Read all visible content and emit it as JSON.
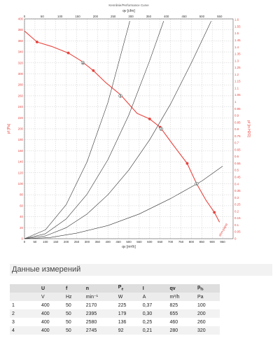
{
  "chart_data": {
    "type": "line",
    "title": "Kennlinie/Performance Curve",
    "top_axis_label": "qv [cfm]",
    "xlabel": "qv [m³/h]",
    "ylabel_left": "pf [Pa]",
    "ylabel_right": "pf [in H2O]",
    "xlim": [
      0,
      1000
    ],
    "ylim": [
      0,
      400
    ],
    "top_xlim": [
      0,
      588
    ],
    "right_ylim": [
      0,
      1.606
    ],
    "grid": true,
    "x_ticks": [
      "0",
      "50",
      "100",
      "150",
      "200",
      "250",
      "300",
      "350",
      "400",
      "450",
      "500",
      "550",
      "600",
      "650",
      "700",
      "750",
      "800",
      "850",
      "900",
      "950"
    ],
    "y_ticks": [
      "0",
      "20",
      "40",
      "60",
      "80",
      "100",
      "120",
      "140",
      "160",
      "180",
      "200",
      "220",
      "240",
      "260",
      "280",
      "300",
      "320",
      "340",
      "360",
      "380",
      "400"
    ],
    "top_ticks": [
      "0",
      "50",
      "100",
      "150",
      "200",
      "250",
      "300",
      "350",
      "400",
      "450",
      "500",
      "550"
    ],
    "right_ticks": [
      "0",
      "0.05",
      "0.1",
      "0.15",
      "0.2",
      "0.25",
      "0.3",
      "0.35",
      "0.4",
      "0.45",
      "0.5",
      "0.55",
      "0.6",
      "0.65",
      "0.7",
      "0.75",
      "0.8",
      "0.85",
      "0.9",
      "0.95",
      "1",
      "1.05",
      "1.1",
      "1.15",
      "1.2",
      "1.25",
      "1.3",
      "1.35",
      "1.4",
      "1.45",
      "1.5",
      "1.55",
      "1.6"
    ],
    "series": [
      {
        "color": "#e8443f",
        "x": [
          0,
          60,
          130,
          210,
          270,
          330,
          390,
          460,
          540,
          600,
          650,
          710,
          780,
          825,
          870,
          910,
          935
        ],
        "y": [
          378,
          358,
          350,
          338,
          324,
          306,
          284,
          262,
          228,
          218,
          203,
          172,
          137,
          100,
          70,
          48,
          30
        ]
      },
      {
        "color": "#333333",
        "x": [
          0,
          120,
          250,
          400,
          550,
          700,
          850,
          950
        ],
        "y": [
          0,
          2,
          10,
          24,
          45,
          73,
          105,
          132
        ]
      },
      {
        "color": "#333333",
        "x": [
          0,
          100,
          200,
          300,
          400,
          500,
          600,
          700,
          800,
          895
        ],
        "y": [
          0,
          5,
          20,
          45,
          80,
          125,
          180,
          245,
          320,
          396
        ]
      },
      {
        "color": "#333333",
        "x": [
          0,
          100,
          200,
          300,
          400,
          500,
          600,
          667
        ],
        "y": [
          0,
          9,
          36,
          81,
          144,
          225,
          324,
          396
        ]
      },
      {
        "color": "#333333",
        "x": [
          0,
          100,
          200,
          300,
          400,
          505
        ],
        "y": [
          0,
          16,
          62,
          140,
          248,
          396
        ]
      }
    ],
    "points": [
      {
        "label": "1",
        "x": 825,
        "y": 100
      },
      {
        "label": "2",
        "x": 655,
        "y": 200
      },
      {
        "label": "3",
        "x": 460,
        "y": 260
      },
      {
        "label": "4",
        "x": 280,
        "y": 320
      }
    ],
    "markers": [
      {
        "label": "A",
        "x": 60,
        "y": 358
      },
      {
        "label": "B",
        "x": 210,
        "y": 338
      },
      {
        "label": "C",
        "x": 330,
        "y": 306
      },
      {
        "label": "D",
        "x": 600,
        "y": 218
      },
      {
        "label": "E",
        "x": 650,
        "y": 203
      },
      {
        "label": "F",
        "x": 780,
        "y": 137
      },
      {
        "label": "G",
        "x": 910,
        "y": 48
      }
    ],
    "corner_label": "ebm-papst"
  },
  "measurements": {
    "title": "Данные измерений",
    "headers": [
      "",
      "U",
      "f",
      "n",
      "Pe",
      "I",
      "qv",
      "pfs"
    ],
    "units": [
      "",
      "V",
      "Hz",
      "min⁻¹",
      "W",
      "A",
      "m³/h",
      "Pa"
    ],
    "rows": [
      [
        "1",
        "400",
        "50",
        "2170",
        "225",
        "0,37",
        "825",
        "100"
      ],
      [
        "2",
        "400",
        "50",
        "2395",
        "179",
        "0,30",
        "655",
        "200"
      ],
      [
        "3",
        "400",
        "50",
        "2580",
        "136",
        "0,25",
        "460",
        "260"
      ],
      [
        "4",
        "400",
        "50",
        "2745",
        "92",
        "0,21",
        "280",
        "320"
      ]
    ]
  },
  "colors": {
    "curve": "#e8443f",
    "grid": "#bbbbbb",
    "header_bg": "#dedede"
  }
}
